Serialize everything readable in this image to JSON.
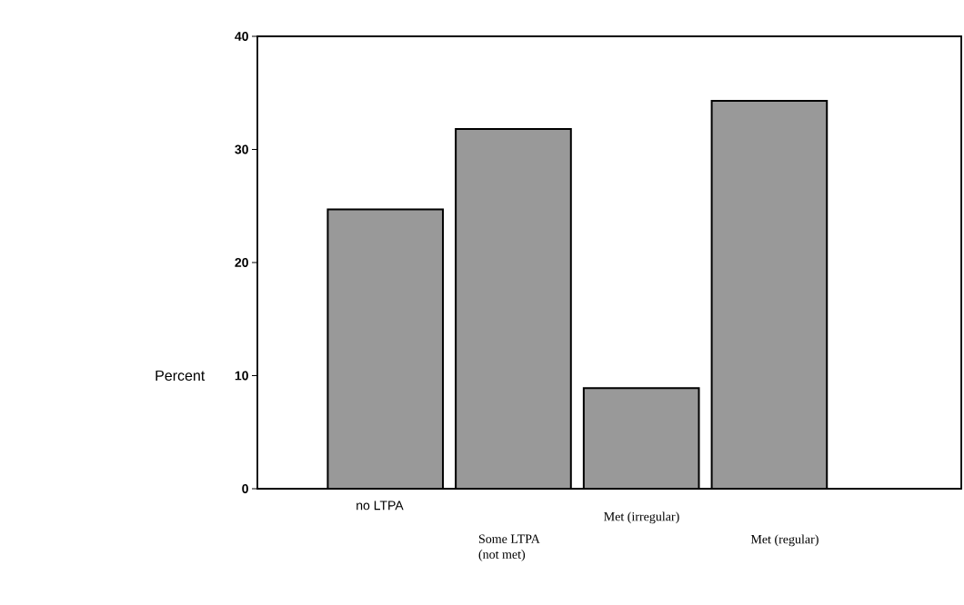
{
  "chart_data": {
    "type": "bar",
    "ylabel": "Percent",
    "categories": [
      "no LTPA",
      "Some LTPA (not met)",
      "Met (irregular)",
      "Met (regular)"
    ],
    "values": [
      24.7,
      31.8,
      8.9,
      34.3
    ],
    "color": "#999999",
    "ylim": [
      0,
      40
    ],
    "yticks": [
      0,
      10,
      20,
      30,
      40
    ],
    "grid": false
  }
}
